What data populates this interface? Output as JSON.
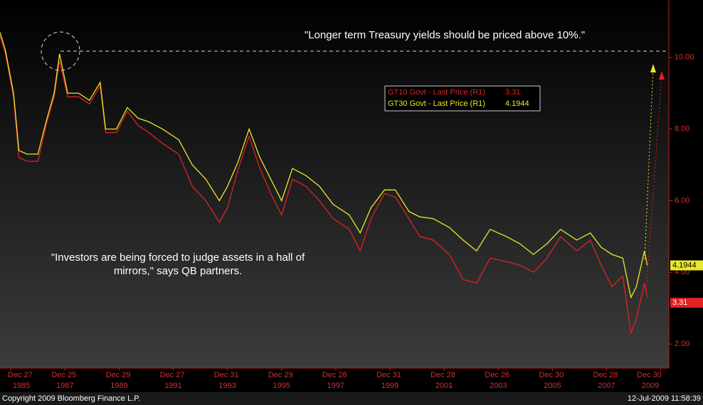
{
  "chart_data": {
    "type": "line",
    "annotations": [
      "\"Longer term Treasury yields should be priced above 10%.\"",
      "\"Investors are being forced to judge assets in a hall of mirrors,\" says QB partners."
    ],
    "footer_left": "Copyright 2009 Bloomberg Finance L.P.",
    "footer_right": "12-Jul-2009 11:58:39",
    "x": [
      1985.6,
      1985.8,
      1986.1,
      1986.3,
      1986.6,
      1987.0,
      1987.3,
      1987.6,
      1987.8,
      1988.1,
      1988.5,
      1988.9,
      1989.3,
      1989.5,
      1989.9,
      1990.3,
      1990.7,
      1991.1,
      1991.6,
      1992.2,
      1992.7,
      1993.2,
      1993.7,
      1994.0,
      1994.4,
      1994.8,
      1995.2,
      1995.6,
      1996.0,
      1996.4,
      1996.9,
      1997.4,
      1997.9,
      1998.5,
      1998.9,
      1999.3,
      1999.8,
      2000.2,
      2000.7,
      2001.1,
      2001.6,
      2002.2,
      2002.7,
      2003.2,
      2003.7,
      2004.3,
      2004.8,
      2005.3,
      2005.8,
      2006.3,
      2006.9,
      2007.4,
      2007.8,
      2008.2,
      2008.6,
      2008.9,
      2009.1,
      2009.4,
      2009.5
    ],
    "series": [
      {
        "name": "GT30 Govt - Last Price (R1)",
        "color": "#e8e82a",
        "values": [
          10.7,
          10.2,
          9.0,
          7.4,
          7.3,
          7.3,
          8.2,
          9.0,
          10.1,
          9.0,
          9.0,
          8.8,
          9.3,
          8.0,
          8.0,
          8.6,
          8.3,
          8.2,
          8.0,
          7.7,
          7.0,
          6.6,
          6.0,
          6.4,
          7.1,
          8.0,
          7.2,
          6.6,
          6.0,
          6.9,
          6.7,
          6.4,
          5.9,
          5.6,
          5.1,
          5.8,
          6.3,
          6.3,
          5.7,
          5.55,
          5.5,
          5.25,
          4.9,
          4.6,
          5.2,
          5.0,
          4.8,
          4.5,
          4.8,
          5.2,
          4.9,
          5.1,
          4.7,
          4.5,
          4.4,
          3.3,
          3.6,
          4.6,
          4.1944
        ]
      },
      {
        "name": "GT10 Govt - Last Price (R1)",
        "color": "#e02222",
        "values": [
          10.6,
          10.1,
          8.9,
          7.2,
          7.1,
          7.1,
          8.1,
          8.9,
          9.9,
          8.9,
          8.9,
          8.7,
          9.2,
          7.9,
          7.9,
          8.5,
          8.1,
          7.9,
          7.6,
          7.3,
          6.4,
          6.0,
          5.4,
          5.8,
          6.9,
          7.8,
          6.9,
          6.2,
          5.6,
          6.6,
          6.4,
          6.0,
          5.5,
          5.2,
          4.6,
          5.5,
          6.2,
          6.1,
          5.5,
          5.0,
          4.9,
          4.5,
          3.8,
          3.7,
          4.4,
          4.3,
          4.2,
          4.0,
          4.4,
          5.0,
          4.6,
          4.9,
          4.2,
          3.6,
          3.9,
          2.3,
          2.7,
          3.7,
          3.31
        ]
      }
    ],
    "xlim": [
      1985.6,
      2010.3
    ],
    "xticks": [
      {
        "value": 1986.0,
        "label": "Dec 27 1985"
      },
      {
        "value": 1988.0,
        "label": "Dec 25 1987"
      },
      {
        "value": 1990.0,
        "label": "Dec 29 1989"
      },
      {
        "value": 1992.0,
        "label": "Dec 27 1991"
      },
      {
        "value": 1994.0,
        "label": "Dec 31 1993"
      },
      {
        "value": 1996.0,
        "label": "Dec 29 1995"
      },
      {
        "value": 1998.0,
        "label": "Dec 26 1997"
      },
      {
        "value": 2000.0,
        "label": "Dec 31 1999"
      },
      {
        "value": 2002.0,
        "label": "Dec 28 2001"
      },
      {
        "value": 2004.0,
        "label": "Dec 26 2003"
      },
      {
        "value": 2006.0,
        "label": "Dec 30 2005"
      },
      {
        "value": 2008.0,
        "label": "Dec 28 2007"
      },
      {
        "value": 2010.0,
        "label": "Dec 30 2009"
      }
    ],
    "ylim": [
      1.33,
      11.6
    ],
    "yticks": [
      {
        "value": 2,
        "label": "2.00"
      },
      {
        "value": 4,
        "label": "4.00"
      },
      {
        "value": 6,
        "label": "6.00"
      },
      {
        "value": 8,
        "label": "8.00"
      },
      {
        "value": 10,
        "label": "10.00"
      }
    ]
  }
}
